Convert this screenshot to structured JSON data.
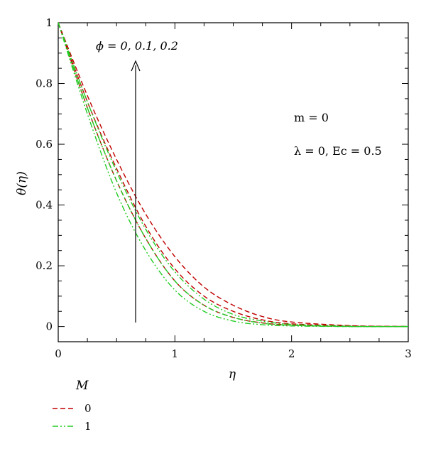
{
  "chart_data": {
    "type": "line",
    "title": "",
    "xlabel": "η",
    "ylabel": "θ(η)",
    "xlim": [
      0,
      3
    ],
    "ylim": [
      -0.05,
      1
    ],
    "x_ticks": [
      0,
      1,
      2,
      3
    ],
    "x_tick_labels": [
      "0",
      "1",
      "2",
      "3"
    ],
    "y_ticks": [
      0,
      0.2,
      0.4,
      0.6,
      0.8,
      1
    ],
    "y_tick_labels": [
      "0",
      "0.2",
      "0.4",
      "0.6",
      "0.8",
      "1"
    ],
    "grid": false,
    "annotations": {
      "phi": "ϕ = 0, 0.1, 0.2",
      "m": "m = 0",
      "params": "λ = 0, Ec = 0.5"
    },
    "arrow": {
      "direction": "up",
      "meaning": "increasing ϕ"
    },
    "legend": {
      "title": "M",
      "placement": "bottom-left",
      "entries": [
        {
          "label": "0",
          "color": "#c00000",
          "style": "dashed"
        },
        {
          "label": "1",
          "color": "#22cc22",
          "style": "dash-dot-dot"
        }
      ]
    },
    "x": [
      0,
      0.25,
      0.5,
      0.75,
      1.0,
      1.25,
      1.5,
      1.75,
      2.0,
      2.5,
      3.0
    ],
    "series": [
      {
        "name": "",
        "M": 0,
        "phi": 0,
        "color": "#c00000",
        "style": "dashed",
        "values": [
          1,
          0.72,
          0.48,
          0.29,
          0.15,
          0.07,
          0.03,
          0.012,
          0.005,
          0.001,
          0
        ]
      },
      {
        "name": "",
        "M": 0,
        "phi": 0.1,
        "color": "#c00000",
        "style": "dashed",
        "values": [
          1,
          0.74,
          0.52,
          0.33,
          0.19,
          0.1,
          0.05,
          0.022,
          0.009,
          0.002,
          0
        ]
      },
      {
        "name": "",
        "M": 0,
        "phi": 0.2,
        "color": "#c00000",
        "style": "dashed",
        "values": [
          1,
          0.76,
          0.55,
          0.37,
          0.23,
          0.13,
          0.07,
          0.033,
          0.015,
          0.003,
          0
        ]
      },
      {
        "name": "",
        "M": 1,
        "phi": 0,
        "color": "#22cc22",
        "style": "dash-dot-dot",
        "values": [
          1,
          0.7,
          0.44,
          0.25,
          0.12,
          0.05,
          0.018,
          0.006,
          0.002,
          0,
          0
        ]
      },
      {
        "name": "",
        "M": 1,
        "phi": 0.1,
        "color": "#22cc22",
        "style": "dash-dot-dot",
        "values": [
          1,
          0.72,
          0.48,
          0.29,
          0.15,
          0.07,
          0.03,
          0.011,
          0.004,
          0,
          0
        ]
      },
      {
        "name": "",
        "M": 1,
        "phi": 0.2,
        "color": "#22cc22",
        "style": "dash-dot-dot",
        "values": [
          1,
          0.74,
          0.51,
          0.32,
          0.18,
          0.09,
          0.04,
          0.018,
          0.007,
          0.001,
          0
        ]
      }
    ]
  }
}
